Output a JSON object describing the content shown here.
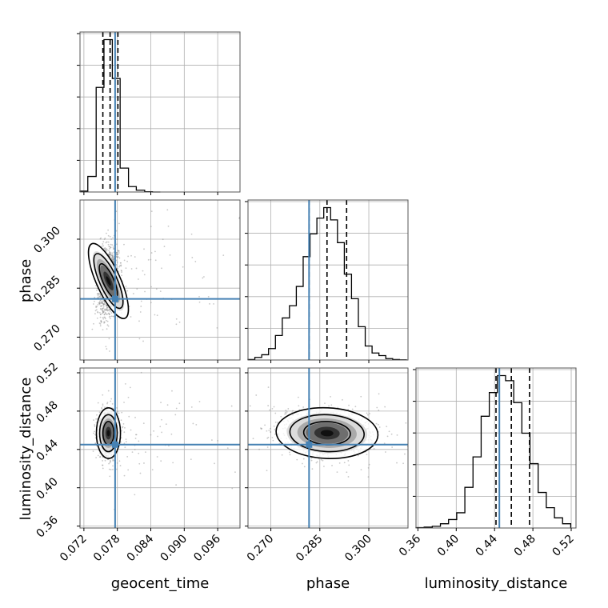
{
  "chart_data": {
    "type": "corner",
    "parameters": [
      {
        "name": "geocent_time",
        "label": "geocent_time",
        "range": [
          0.0713,
          0.1
        ],
        "ticks": [
          0.072,
          0.078,
          0.084,
          0.09,
          0.096
        ],
        "tick_labels": [
          "0.072",
          "0.078",
          "0.084",
          "0.090",
          "0.096"
        ],
        "truth": 0.0776,
        "quantiles": [
          0.0754,
          0.0767,
          0.0781
        ],
        "histogram": {
          "bin_edges": [
            0.0713,
            0.0727,
            0.0742,
            0.0756,
            0.0771,
            0.0785,
            0.08,
            0.0814,
            0.0829,
            0.0843,
            0.0857
          ],
          "counts": [
            0.3,
            5.2,
            35,
            51,
            38,
            8,
            1.8,
            0.6,
            0.1,
            0
          ]
        }
      },
      {
        "name": "phase",
        "label": "phase",
        "range": [
          0.263,
          0.312
        ],
        "ticks": [
          0.27,
          0.285,
          0.3
        ],
        "tick_labels": [
          "0.270",
          "0.285",
          "0.300"
        ],
        "truth": 0.2817,
        "quantiles": [
          0.2817,
          0.2872,
          0.2932
        ],
        "histogram": {
          "bin_edges": [
            0.263,
            0.2651,
            0.2672,
            0.2693,
            0.2714,
            0.2735,
            0.2757,
            0.2778,
            0.2799,
            0.282,
            0.2841,
            0.2862,
            0.2883,
            0.2904,
            0.2925,
            0.2947,
            0.2968,
            0.2989,
            0.301,
            0.3031,
            0.3052,
            0.3073,
            0.3094,
            0.3115
          ],
          "counts": [
            0.3,
            1.5,
            3.0,
            6.5,
            14,
            24,
            31,
            42,
            59,
            72,
            81,
            87,
            80,
            67,
            49,
            35,
            19,
            8,
            4,
            2.5,
            0.8,
            0.3,
            0.1
          ]
        }
      },
      {
        "name": "luminosity_distance",
        "label": "luminosity_distance",
        "range": [
          0.358,
          0.525
        ],
        "ticks": [
          0.36,
          0.4,
          0.44,
          0.48,
          0.52
        ],
        "tick_labels": [
          "0.36",
          "0.40",
          "0.44",
          "0.48",
          "0.52"
        ],
        "truth": 0.445,
        "quantiles": [
          0.4415,
          0.4575,
          0.4765
        ],
        "histogram": {
          "bin_edges": [
            0.358,
            0.3665,
            0.375,
            0.3835,
            0.392,
            0.4005,
            0.409,
            0.4175,
            0.426,
            0.4345,
            0.443,
            0.4515,
            0.46,
            0.4685,
            0.477,
            0.4855,
            0.494,
            0.5025,
            0.511,
            0.5195
          ],
          "counts": [
            0.2,
            0.5,
            1.0,
            2.5,
            5,
            9,
            24,
            42,
            66,
            80,
            90,
            87,
            74,
            56,
            38,
            21,
            12,
            6,
            2.5
          ]
        }
      }
    ],
    "contour_levels_2d": {
      "phase_vs_geocent_time": {
        "center": [
          0.0764,
          0.2872
        ],
        "sigma": [
          0.0009,
          0.0052
        ],
        "rho": 0.25
      },
      "luminosity_distance_vs_geocent_time": {
        "center": [
          0.0764,
          0.457
        ],
        "sigma": [
          0.0009,
          0.011
        ],
        "rho": 0.0
      },
      "luminosity_distance_vs_phase": {
        "center": [
          0.2872,
          0.457
        ],
        "sigma": [
          0.0065,
          0.011
        ],
        "rho": -0.15
      }
    },
    "truth_color": "#4682b4",
    "grid": true
  }
}
